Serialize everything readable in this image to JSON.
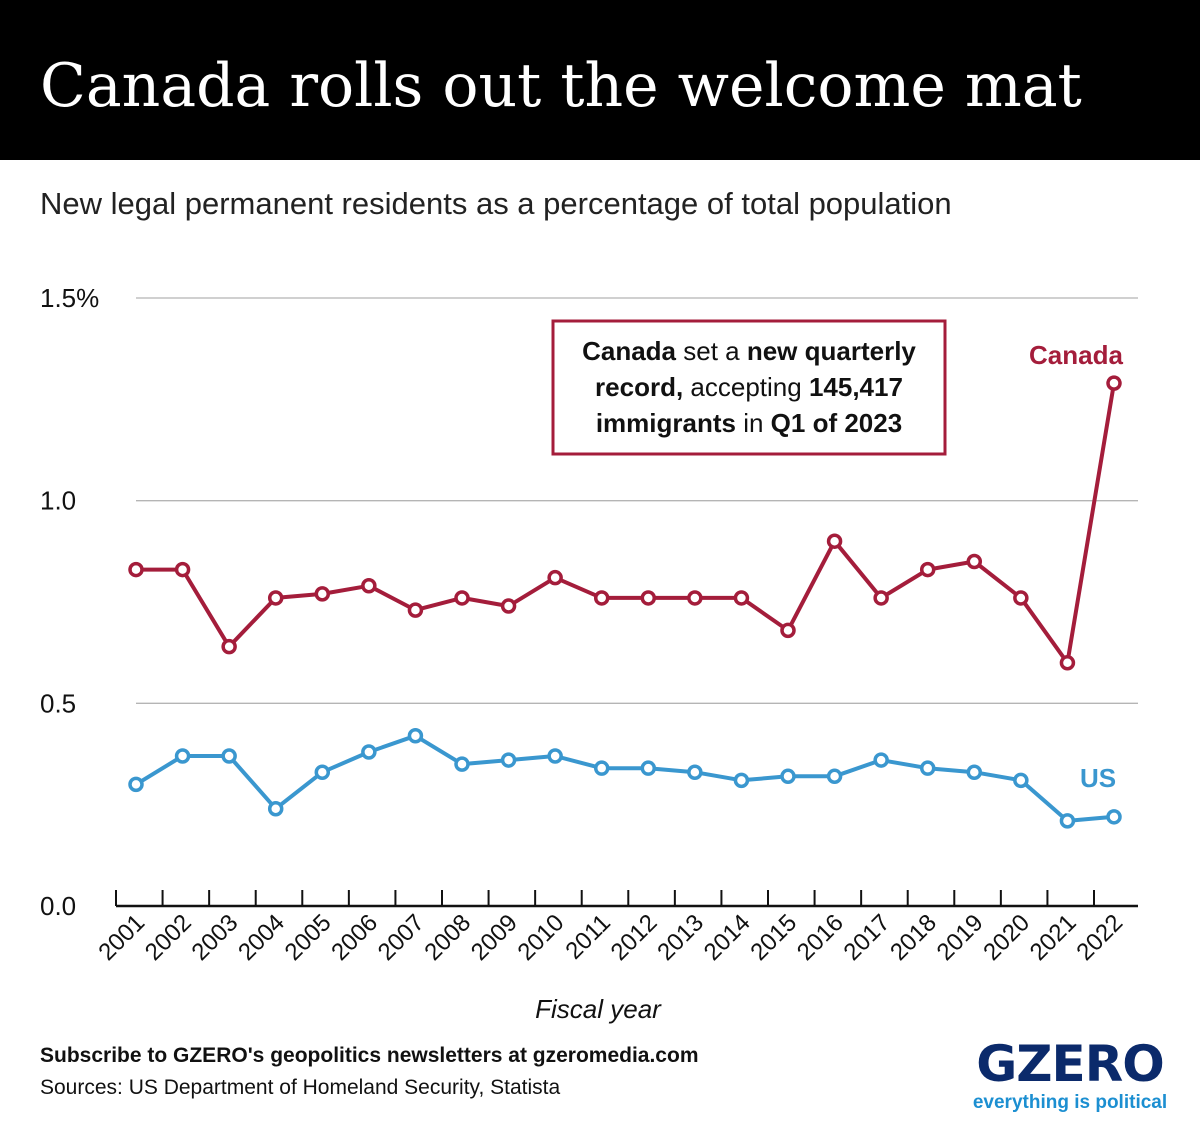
{
  "header": {
    "title": "Canada rolls out the welcome mat"
  },
  "subtitle": "New legal permanent residents as a percentage of total population",
  "annotation": {
    "lines": [
      [
        {
          "text": "Canada",
          "bold": true
        },
        {
          "text": " set a ",
          "bold": false
        },
        {
          "text": "new quarterly",
          "bold": true
        }
      ],
      [
        {
          "text": "record,",
          "bold": true
        },
        {
          "text": " accepting ",
          "bold": false
        },
        {
          "text": "145,417",
          "bold": true
        }
      ],
      [
        {
          "text": "immigrants",
          "bold": true
        },
        {
          "text": " in ",
          "bold": false
        },
        {
          "text": "Q1 of 2023",
          "bold": true
        }
      ]
    ]
  },
  "footer": {
    "subscribe": "Subscribe to GZERO's geopolitics newsletters at gzeromedia.com",
    "sources": "Sources: US Department of Homeland Security, Statista"
  },
  "logo": {
    "word": "GZERO",
    "tagline": "everything is political"
  },
  "colors": {
    "canada": "#a41d3b",
    "us": "#3a97cf",
    "header_bg": "#000000",
    "grid": "#b5b5b5",
    "logo_navy": "#0b2a6b",
    "logo_blue": "#1c8fd1"
  },
  "chart_data": {
    "type": "line",
    "title": "Canada rolls out the welcome mat",
    "subtitle": "New legal permanent residents as a percentage of total population",
    "xlabel": "Fiscal year",
    "ylabel": "",
    "x": [
      "2001",
      "2002",
      "2003",
      "2004",
      "2005",
      "2006",
      "2007",
      "2008",
      "2009",
      "2010",
      "2011",
      "2012",
      "2013",
      "2014",
      "2015",
      "2016",
      "2017",
      "2018",
      "2019",
      "2020",
      "2021",
      "2022"
    ],
    "ylim": [
      0,
      1.5
    ],
    "yticks": [
      0,
      0.5,
      1.0,
      1.5
    ],
    "ytick_labels": [
      "0.0",
      "0.5",
      "1.0",
      "1.5%"
    ],
    "grid": true,
    "series": [
      {
        "name": "Canada",
        "color": "#a41d3b",
        "values": [
          0.83,
          0.83,
          0.64,
          0.76,
          0.77,
          0.79,
          0.73,
          0.76,
          0.74,
          0.81,
          0.76,
          0.76,
          0.76,
          0.76,
          0.68,
          0.9,
          0.76,
          0.83,
          0.85,
          0.76,
          0.6,
          1.29
        ]
      },
      {
        "name": "US",
        "color": "#3a97cf",
        "values": [
          0.3,
          0.37,
          0.37,
          0.24,
          0.33,
          0.38,
          0.42,
          0.35,
          0.36,
          0.37,
          0.34,
          0.34,
          0.33,
          0.31,
          0.32,
          0.32,
          0.36,
          0.34,
          0.33,
          0.31,
          0.21,
          0.22
        ]
      }
    ]
  }
}
